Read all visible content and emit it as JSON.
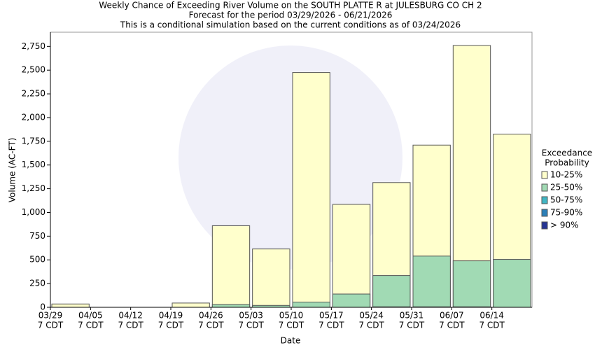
{
  "chart_data": {
    "type": "overlap-bar",
    "title": [
      "Weekly Chance of Exceeding River Volume on the SOUTH PLATTE R at JULESBURG CO CH 2",
      "Forecast for the period 03/29/2026 - 06/21/2026",
      "This is a conditional simulation based on the current conditions as of 03/24/2026"
    ],
    "x_label": "Date",
    "y_label": "Volume (AC-FT)",
    "categories": [
      [
        "03/29",
        "7 CDT"
      ],
      [
        "04/05",
        "7 CDT"
      ],
      [
        "04/12",
        "7 CDT"
      ],
      [
        "04/19",
        "7 CDT"
      ],
      [
        "04/26",
        "7 CDT"
      ],
      [
        "05/03",
        "7 CDT"
      ],
      [
        "05/10",
        "7 CDT"
      ],
      [
        "05/17",
        "7 CDT"
      ],
      [
        "05/24",
        "7 CDT"
      ],
      [
        "05/31",
        "7 CDT"
      ],
      [
        "06/07",
        "7 CDT"
      ],
      [
        "06/14",
        "7 CDT"
      ]
    ],
    "series": [
      {
        "name": "10-25%",
        "color": "#ffffcc",
        "values": [
          35,
          0,
          0,
          45,
          860,
          615,
          2475,
          1085,
          1315,
          1710,
          2760,
          1825
        ]
      },
      {
        "name": "25-50%",
        "color": "#a1dab4",
        "values": [
          0,
          0,
          0,
          0,
          30,
          20,
          55,
          140,
          335,
          540,
          490,
          505
        ]
      },
      {
        "name": "50-75%",
        "color": "#41b6c4",
        "values": [
          0,
          0,
          0,
          0,
          0,
          0,
          0,
          0,
          5,
          5,
          5,
          0
        ]
      },
      {
        "name": "75-90%",
        "color": "#2c7fb8",
        "values": [
          0,
          0,
          0,
          0,
          0,
          0,
          0,
          0,
          0,
          0,
          0,
          0
        ]
      },
      {
        "name": "> 90%",
        "color": "#253494",
        "values": [
          0,
          0,
          0,
          0,
          0,
          0,
          0,
          0,
          0,
          0,
          0,
          0
        ]
      }
    ],
    "legend_title": [
      "Exceedance",
      "Probability"
    ],
    "ylim": [
      0,
      2900
    ],
    "yticks": [
      0,
      250,
      500,
      750,
      {
        "value": 1000,
        "label": "1,000"
      },
      {
        "value": 1250,
        "label": "1,250"
      },
      {
        "value": 1500,
        "label": "1,500"
      },
      {
        "value": 1750,
        "label": "1,750"
      },
      {
        "value": 2000,
        "label": "2,000"
      },
      {
        "value": 2250,
        "label": "2,250"
      },
      {
        "value": 2500,
        "label": "2,500"
      },
      {
        "value": 2750,
        "label": "2,750"
      }
    ],
    "grid": false
  }
}
